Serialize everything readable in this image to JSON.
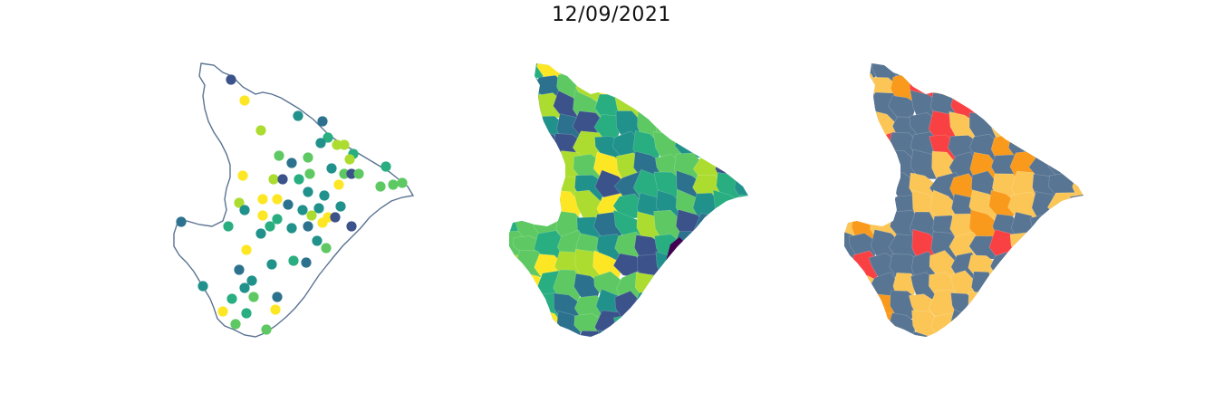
{
  "title": "12/09/2021",
  "colors": {
    "outline": "#5a7391",
    "viridis": [
      "#440154",
      "#3b528b",
      "#2c728e",
      "#21918c",
      "#28ae80",
      "#5ec962",
      "#addc30",
      "#fde725"
    ],
    "risk": [
      "#587593",
      "#fcc656",
      "#f99a1c",
      "#f94144"
    ]
  },
  "panels": [
    {
      "name": "station-points",
      "kind": "points"
    },
    {
      "name": "interpolated-municipalities",
      "kind": "viridis"
    },
    {
      "name": "risk-classes",
      "kind": "risk"
    }
  ]
}
